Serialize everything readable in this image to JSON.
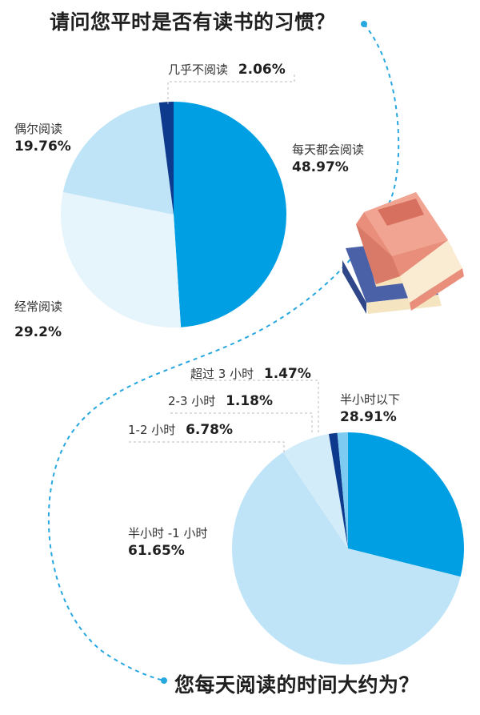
{
  "colors": {
    "accent": "#009fe3",
    "dark": "#0d3a8c",
    "light_blue": "#bfe4f7",
    "pale_blue": "#e6f4fc",
    "mid_light": "#d3ecf9",
    "sky": "#7ecbf2",
    "dash": "#27a7e0"
  },
  "chart_data": [
    {
      "type": "pie",
      "title": "请问您平时是否有读书的习惯？",
      "slices": [
        {
          "label": "每天都会阅读",
          "value": 48.97,
          "display": "48.97%"
        },
        {
          "label": "经常阅读",
          "value": 29.2,
          "display": "29.2%"
        },
        {
          "label": "偶尔阅读",
          "value": 19.76,
          "display": "19.76%"
        },
        {
          "label": "几乎不阅读",
          "value": 2.06,
          "display": "2.06%"
        }
      ]
    },
    {
      "type": "pie",
      "title": "您每天阅读的时间大约为？",
      "slices": [
        {
          "label": "半小时以下",
          "value": 28.91,
          "display": "28.91%"
        },
        {
          "label": "半小时 -1 小时",
          "value": 61.65,
          "display": "61.65%"
        },
        {
          "label": "1-2 小时",
          "value": 6.78,
          "display": "6.78%"
        },
        {
          "label": "2-3 小时",
          "value": 1.18,
          "display": "1.18%"
        },
        {
          "label": "超过 3 小时",
          "value": 1.47,
          "display": "1.47%"
        }
      ]
    }
  ],
  "decoration": {
    "icon": "books-icon"
  }
}
